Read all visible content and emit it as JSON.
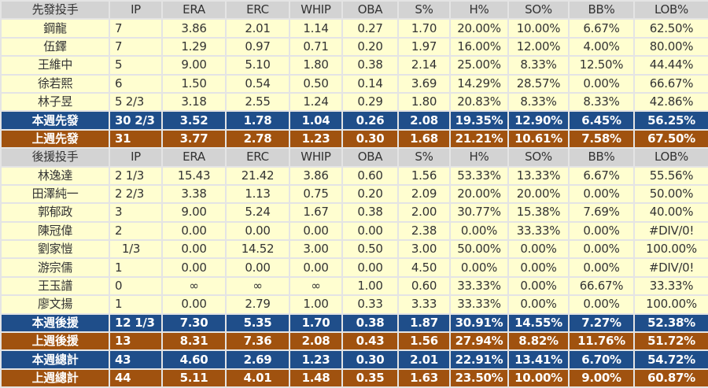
{
  "columns": [
    "IP",
    "ERA",
    "ERC",
    "WHIP",
    "OBA",
    "S%",
    "H%",
    "SO%",
    "BB%",
    "LOB%"
  ],
  "colors": {
    "header": "#d3d3d3",
    "row": "#fffed0",
    "this_week": "#1f4e8a",
    "last_week": "#a0520f"
  },
  "sections": [
    {
      "title": "先發投手",
      "rows": [
        {
          "type": "row",
          "name": "鋼龍",
          "values": [
            "7",
            "3.86",
            "2.01",
            "1.14",
            "0.27",
            "1.70",
            "20.00%",
            "10.00%",
            "6.67%",
            "62.50%"
          ]
        },
        {
          "type": "row",
          "name": "伍鐸",
          "values": [
            "7",
            "1.29",
            "0.97",
            "0.71",
            "0.20",
            "1.97",
            "16.00%",
            "12.00%",
            "4.00%",
            "80.00%"
          ]
        },
        {
          "type": "row",
          "name": "王維中",
          "values": [
            "5",
            "9.00",
            "5.10",
            "1.80",
            "0.38",
            "2.14",
            "25.00%",
            "8.33%",
            "12.50%",
            "44.44%"
          ]
        },
        {
          "type": "row",
          "name": "徐若熙",
          "values": [
            "6",
            "1.50",
            "0.54",
            "0.50",
            "0.14",
            "3.69",
            "14.29%",
            "28.57%",
            "0.00%",
            "66.67%"
          ]
        },
        {
          "type": "row",
          "name": "林子昱",
          "values": [
            "5 2/3",
            "3.18",
            "2.55",
            "1.24",
            "0.29",
            "1.80",
            "20.83%",
            "8.33%",
            "8.33%",
            "42.86%"
          ]
        },
        {
          "type": "blue",
          "name": "本週先發",
          "values": [
            "30 2/3",
            "3.52",
            "1.78",
            "1.04",
            "0.26",
            "2.08",
            "19.35%",
            "12.90%",
            "6.45%",
            "56.25%"
          ]
        },
        {
          "type": "brown",
          "name": "上週先發",
          "values": [
            "31",
            "3.77",
            "2.78",
            "1.23",
            "0.30",
            "1.68",
            "21.21%",
            "10.61%",
            "7.58%",
            "67.50%"
          ]
        }
      ]
    },
    {
      "title": "後援投手",
      "rows": [
        {
          "type": "row",
          "name": "林逸達",
          "values": [
            "2 1/3",
            "15.43",
            "21.42",
            "3.86",
            "0.60",
            "1.56",
            "53.33%",
            "13.33%",
            "6.67%",
            "55.56%"
          ]
        },
        {
          "type": "row",
          "name": "田澤純一",
          "values": [
            "2 2/3",
            "3.38",
            "1.13",
            "0.75",
            "0.20",
            "2.09",
            "20.00%",
            "20.00%",
            "0.00%",
            "50.00%"
          ]
        },
        {
          "type": "row",
          "name": "郭郁政",
          "values": [
            "3",
            "9.00",
            "5.24",
            "1.67",
            "0.38",
            "2.00",
            "30.77%",
            "15.38%",
            "7.69%",
            "40.00%"
          ]
        },
        {
          "type": "row",
          "name": "陳冠偉",
          "values": [
            "2",
            "0.00",
            "0.00",
            "0.00",
            "0.00",
            "2.38",
            "0.00%",
            "33.33%",
            "0.00%",
            "#DIV/0!"
          ]
        },
        {
          "type": "row",
          "name": "劉家愷",
          "values": [
            "  1/3",
            "0.00",
            "14.52",
            "3.00",
            "0.50",
            "3.00",
            "50.00%",
            "0.00%",
            "0.00%",
            "100.00%"
          ]
        },
        {
          "type": "row",
          "name": "游宗儒",
          "values": [
            "1",
            "0.00",
            "0.00",
            "0.00",
            "0.00",
            "4.50",
            "0.00%",
            "0.00%",
            "0.00%",
            "#DIV/0!"
          ]
        },
        {
          "type": "row",
          "name": "王玉譜",
          "values": [
            "0",
            "∞",
            "∞",
            "∞",
            "1.00",
            "0.60",
            "33.33%",
            "0.00%",
            "66.67%",
            "33.33%"
          ]
        },
        {
          "type": "row",
          "name": "廖文揚",
          "values": [
            "1",
            "0.00",
            "2.79",
            "1.00",
            "0.33",
            "3.33",
            "33.33%",
            "0.00%",
            "0.00%",
            "100.00%"
          ]
        },
        {
          "type": "blue",
          "name": "本週後援",
          "values": [
            "12 1/3",
            "7.30",
            "5.35",
            "1.70",
            "0.38",
            "1.87",
            "30.91%",
            "14.55%",
            "7.27%",
            "52.38%"
          ]
        },
        {
          "type": "brown",
          "name": "上週後援",
          "values": [
            "13",
            "8.31",
            "7.36",
            "2.08",
            "0.43",
            "1.56",
            "27.94%",
            "8.82%",
            "11.76%",
            "51.72%"
          ]
        },
        {
          "type": "blue",
          "name": "本週總計",
          "values": [
            "43",
            "4.60",
            "2.69",
            "1.23",
            "0.30",
            "2.01",
            "22.91%",
            "13.41%",
            "6.70%",
            "54.72%"
          ]
        },
        {
          "type": "brown",
          "name": "上週總計",
          "values": [
            "44",
            "5.11",
            "4.01",
            "1.48",
            "0.35",
            "1.63",
            "23.50%",
            "10.00%",
            "9.00%",
            "60.87%"
          ]
        }
      ]
    }
  ]
}
